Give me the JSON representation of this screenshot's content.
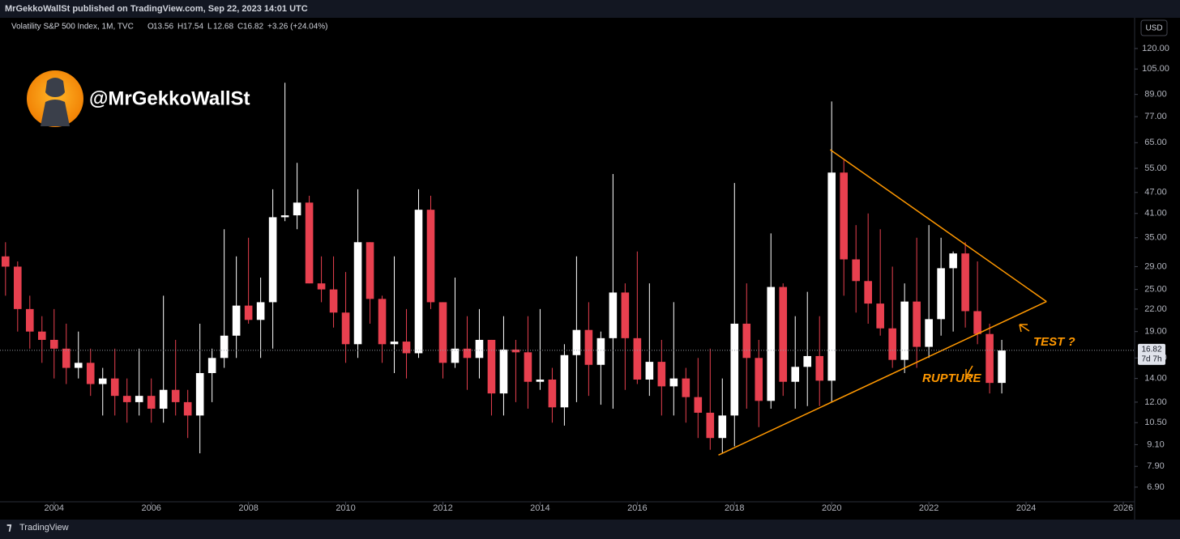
{
  "header": {
    "publisher": "MrGekkoWallSt published on TradingView.com, Sep 22, 2023 14:01 UTC"
  },
  "legend": {
    "symbol": "Volatility S&P 500 Index, 1M, TVC",
    "items": [
      {
        "label": "O",
        "value": "13.56"
      },
      {
        "label": "H",
        "value": "17.54"
      },
      {
        "label": "L",
        "value": "12.68"
      },
      {
        "label": "C",
        "value": "16.82"
      }
    ],
    "change": "+3.26 (+24.04%)"
  },
  "currency": "USD",
  "watermark": "@MrGekkoWallSt",
  "footer": "TradingView",
  "chart_data": {
    "type": "candlestick",
    "log": true,
    "up_color": "#ffffff",
    "down_color": "#e8404f",
    "xlim": [
      2003.02,
      2026.2
    ],
    "xticks": [
      2004,
      2006,
      2008,
      2010,
      2012,
      2014,
      2016,
      2018,
      2020,
      2022,
      2024,
      2026
    ],
    "ylim": [
      6.44,
      142
    ],
    "yticks": [
      {
        "value": 6.9,
        "label": "6.90"
      },
      {
        "value": 7.9,
        "label": "7.90"
      },
      {
        "value": 9.1,
        "label": "9.10"
      },
      {
        "value": 10.5,
        "label": "10.50"
      },
      {
        "value": 12,
        "label": "12.00"
      },
      {
        "value": 14,
        "label": "14.00"
      },
      {
        "value": 16,
        "label": "16.00"
      },
      {
        "value": 19,
        "label": "19.00"
      },
      {
        "value": 22,
        "label": "22.00"
      },
      {
        "value": 25,
        "label": "25.00"
      },
      {
        "value": 29,
        "label": "29.00"
      },
      {
        "value": 35,
        "label": "35.00"
      },
      {
        "value": 41,
        "label": "41.00"
      },
      {
        "value": 47,
        "label": "47.00"
      },
      {
        "value": 55,
        "label": "55.00"
      },
      {
        "value": 65,
        "label": "65.00"
      },
      {
        "value": 77,
        "label": "77.00"
      },
      {
        "value": 89,
        "label": "89.00"
      },
      {
        "value": 105,
        "label": "105.00"
      },
      {
        "value": 120,
        "label": "120.00"
      }
    ],
    "x": [
      2003.0,
      2003.25,
      2003.5,
      2003.75,
      2004.0,
      2004.25,
      2004.5,
      2004.75,
      2005.0,
      2005.25,
      2005.5,
      2005.75,
      2006.0,
      2006.25,
      2006.5,
      2006.75,
      2007.0,
      2007.25,
      2007.5,
      2007.75,
      2008.0,
      2008.25,
      2008.5,
      2008.75,
      2009.0,
      2009.25,
      2009.5,
      2009.75,
      2010.0,
      2010.25,
      2010.5,
      2010.75,
      2011.0,
      2011.25,
      2011.5,
      2011.75,
      2012.0,
      2012.25,
      2012.5,
      2012.75,
      2013.0,
      2013.25,
      2013.5,
      2013.75,
      2014.0,
      2014.25,
      2014.5,
      2014.75,
      2015.0,
      2015.25,
      2015.5,
      2015.75,
      2016.0,
      2016.25,
      2016.5,
      2016.75,
      2017.0,
      2017.25,
      2017.5,
      2017.75,
      2018.0,
      2018.25,
      2018.5,
      2018.75,
      2019.0,
      2019.25,
      2019.5,
      2019.75,
      2020.0,
      2020.25,
      2020.5,
      2020.75,
      2021.0,
      2021.25,
      2021.5,
      2021.75,
      2022.0,
      2022.25,
      2022.5,
      2022.75,
      2023.0,
      2023.25,
      2023.5
    ],
    "ohlc": [
      [
        31,
        34,
        24,
        29
      ],
      [
        29,
        30,
        19,
        22
      ],
      [
        22,
        24,
        17,
        19
      ],
      [
        19,
        21,
        15.5,
        18
      ],
      [
        18,
        22,
        14,
        17
      ],
      [
        17,
        20,
        13.5,
        15
      ],
      [
        15,
        19,
        14,
        15.5
      ],
      [
        15.5,
        17,
        12.5,
        13.5
      ],
      [
        13.5,
        15,
        11,
        14
      ],
      [
        14,
        17,
        11,
        12.5
      ],
      [
        12.5,
        14,
        10.5,
        12
      ],
      [
        12,
        17,
        11,
        12.5
      ],
      [
        12.5,
        14,
        10.5,
        11.5
      ],
      [
        11.5,
        24,
        10.5,
        13
      ],
      [
        13,
        18,
        11,
        12
      ],
      [
        12,
        13,
        9.5,
        11
      ],
      [
        11,
        20,
        8.6,
        14.5
      ],
      [
        14.5,
        17,
        12,
        16
      ],
      [
        16,
        37,
        15,
        18.5
      ],
      [
        18.5,
        31,
        16,
        22.5
      ],
      [
        22.5,
        35,
        20,
        20.5
      ],
      [
        20.5,
        27,
        16,
        23
      ],
      [
        23,
        48,
        17,
        40
      ],
      [
        40,
        96,
        39,
        40.5
      ],
      [
        40.5,
        57,
        37,
        44
      ],
      [
        44,
        46,
        26,
        26
      ],
      [
        26,
        31,
        23,
        25
      ],
      [
        25,
        31,
        19.5,
        21.5
      ],
      [
        21.5,
        28,
        15.5,
        17.5
      ],
      [
        17.5,
        48,
        16,
        34
      ],
      [
        34,
        34,
        20,
        23.5
      ],
      [
        23.5,
        24,
        15.5,
        17.5
      ],
      [
        17.5,
        31,
        14.5,
        17.8
      ],
      [
        17.8,
        22,
        14,
        16.5
      ],
      [
        16.5,
        48,
        16,
        42
      ],
      [
        42,
        46,
        22,
        23
      ],
      [
        23,
        23,
        14,
        15.5
      ],
      [
        15.5,
        27,
        15,
        17
      ],
      [
        17,
        21,
        13,
        16
      ],
      [
        16,
        22,
        14,
        18
      ],
      [
        18,
        18,
        11,
        12.7
      ],
      [
        12.7,
        21,
        11,
        16.9
      ],
      [
        16.9,
        18,
        12,
        16.6
      ],
      [
        16.6,
        21,
        11.5,
        13.7
      ],
      [
        13.7,
        22,
        13,
        13.9
      ],
      [
        13.9,
        15,
        10.5,
        11.6
      ],
      [
        11.6,
        17.5,
        10.3,
        16.3
      ],
      [
        16.3,
        31,
        12,
        19.2
      ],
      [
        19.2,
        23,
        12.5,
        15.3
      ],
      [
        15.3,
        19,
        11.8,
        18.2
      ],
      [
        18.2,
        53,
        11.5,
        24.5
      ],
      [
        24.5,
        26,
        13,
        18.2
      ],
      [
        18.2,
        32,
        13.5,
        13.9
      ],
      [
        13.9,
        26,
        12.5,
        15.6
      ],
      [
        15.6,
        18,
        11,
        13.3
      ],
      [
        13.3,
        23,
        11,
        14
      ],
      [
        14,
        15,
        10.5,
        12.4
      ],
      [
        12.4,
        16,
        9.5,
        11.2
      ],
      [
        11.2,
        17,
        8.8,
        9.5
      ],
      [
        9.5,
        14,
        8.6,
        11
      ],
      [
        11,
        50,
        9,
        20
      ],
      [
        20,
        26,
        11.5,
        16
      ],
      [
        16,
        18,
        10.2,
        12.1
      ],
      [
        12.1,
        36,
        11.5,
        25.4
      ],
      [
        25.4,
        26,
        12.5,
        13.7
      ],
      [
        13.7,
        21,
        11.5,
        15.1
      ],
      [
        15.1,
        24.6,
        11.7,
        16.2
      ],
      [
        16.2,
        21,
        11.7,
        13.8
      ],
      [
        13.8,
        85,
        12,
        53.5
      ],
      [
        53.5,
        58,
        24,
        30.4
      ],
      [
        30.4,
        38,
        21.5,
        26.4
      ],
      [
        26.4,
        41,
        20,
        22.8
      ],
      [
        22.8,
        37,
        18.5,
        19.4
      ],
      [
        19.4,
        29,
        15,
        15.8
      ],
      [
        15.8,
        26,
        14.5,
        23.1
      ],
      [
        23.1,
        35,
        15,
        17.2
      ],
      [
        17.2,
        38,
        16,
        20.6
      ],
      [
        20.6,
        35,
        18.5,
        28.7
      ],
      [
        28.7,
        32,
        19,
        31.6
      ],
      [
        31.6,
        34,
        19.5,
        21.7
      ],
      [
        21.7,
        30,
        17.5,
        18.7
      ],
      [
        18.7,
        20,
        12.7,
        13.6
      ],
      [
        13.6,
        18,
        12.7,
        16.8
      ]
    ],
    "trendline_color": "#ff9800",
    "trendlines": [
      {
        "x": [
          2019.97,
          2024.42
        ],
        "y": [
          62.1,
          23.1
        ]
      },
      {
        "x": [
          2017.67,
          2024.42
        ],
        "y": [
          8.5,
          23.1
        ]
      }
    ],
    "last_price": {
      "value": 16.82,
      "label": "16.82",
      "countdown": "7d 7h"
    },
    "annotations": [
      "RUPTURE",
      "TEST ?"
    ]
  }
}
